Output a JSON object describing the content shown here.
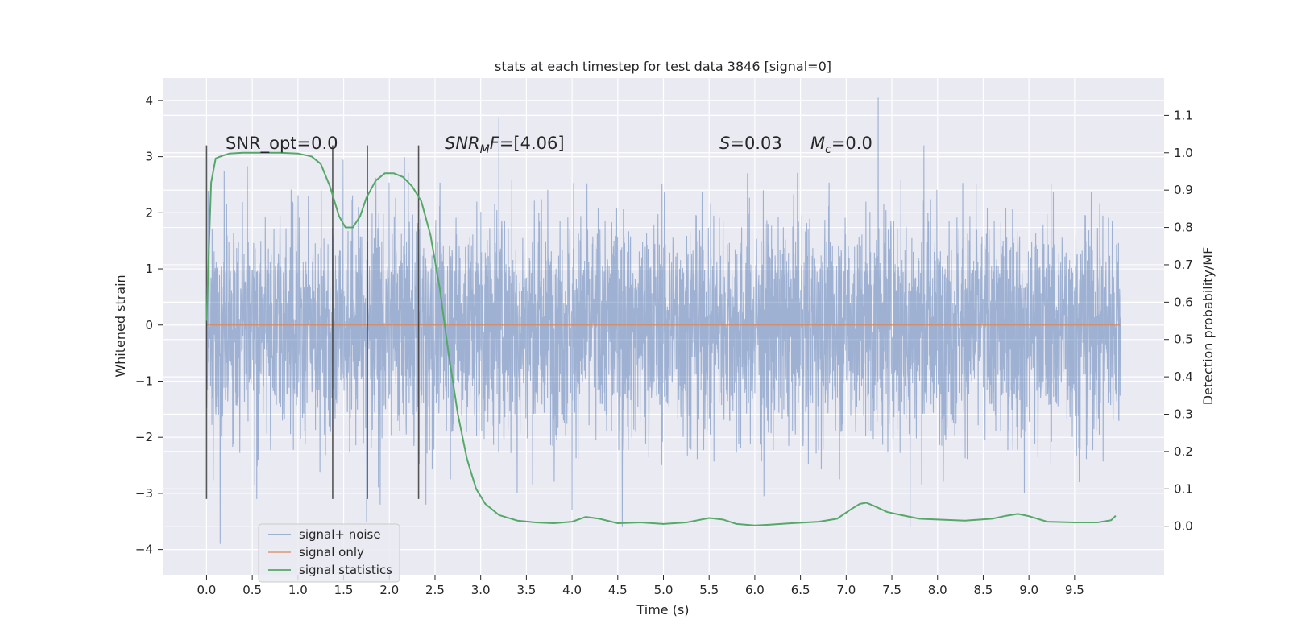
{
  "chart_data": {
    "type": "line",
    "title": "stats at each timestep for test data 3846 [signal=0]",
    "xlabel": "Time (s)",
    "ylabel": "Whitened strain",
    "ylabel_right": "Detection probability/MF",
    "xlim": [
      -0.48,
      10.48
    ],
    "ylim": [
      -4.45,
      4.4
    ],
    "ylim_right": [
      -0.13,
      1.2
    ],
    "x_ticks": [
      "0.0",
      "0.5",
      "1.0",
      "1.5",
      "2.0",
      "2.5",
      "3.0",
      "3.5",
      "4.0",
      "4.5",
      "5.0",
      "5.5",
      "6.0",
      "6.5",
      "7.0",
      "7.5",
      "8.0",
      "8.5",
      "9.0",
      "9.5"
    ],
    "y_ticks": [
      "−4",
      "−3",
      "−2",
      "−1",
      "0",
      "1",
      "2",
      "3",
      "4"
    ],
    "y_right_ticks": [
      "0.0",
      "0.1",
      "0.2",
      "0.3",
      "0.4",
      "0.5",
      "0.6",
      "0.7",
      "0.8",
      "0.9",
      "1.0",
      "1.1"
    ],
    "grid": true,
    "legend_position": "lower-left",
    "annotations": [
      {
        "label": "SNR_opt=0.0",
        "x": 0.2
      },
      {
        "label": "SNR_M F=[4.06]",
        "x": 2.6
      },
      {
        "label": "S=0.03",
        "x": 5.6
      },
      {
        "label": "M_c=0.0",
        "x": 6.6
      }
    ],
    "vertical_markers": [
      0.0,
      1.38,
      1.76,
      2.32
    ],
    "vertical_marker_range": [
      -3.1,
      3.2
    ],
    "series": [
      {
        "name": "signal+ noise",
        "color": "#4c72b0",
        "axis": "left",
        "kind": "noise",
        "x_range": [
          0.0,
          10.0
        ],
        "typical_envelope": [
          -1.9,
          1.9
        ],
        "notable_peaks": [
          {
            "x": 0.15,
            "y": -3.9
          },
          {
            "x": 0.55,
            "y": -3.1
          },
          {
            "x": 1.75,
            "y": -3.5
          },
          {
            "x": 1.9,
            "y": -3.2
          },
          {
            "x": 2.4,
            "y": -3.2
          },
          {
            "x": 3.2,
            "y": 3.7
          },
          {
            "x": 3.4,
            "y": -3.0
          },
          {
            "x": 4.0,
            "y": -3.3
          },
          {
            "x": 4.55,
            "y": -3.6
          },
          {
            "x": 6.1,
            "y": -3.05
          },
          {
            "x": 7.35,
            "y": 4.05
          },
          {
            "x": 7.7,
            "y": -3.6
          },
          {
            "x": 7.85,
            "y": 3.2
          },
          {
            "x": 8.95,
            "y": -3.0
          },
          {
            "x": 9.55,
            "y": -2.8
          }
        ]
      },
      {
        "name": "signal only",
        "color": "#dd8452",
        "axis": "left",
        "x": [
          0.0,
          10.0
        ],
        "values": [
          0.0,
          0.0
        ]
      },
      {
        "name": "signal statistics",
        "color": "#55a868",
        "axis": "right",
        "x": [
          0.0,
          0.05,
          0.1,
          0.15,
          0.25,
          0.4,
          0.6,
          0.8,
          1.0,
          1.15,
          1.25,
          1.35,
          1.45,
          1.52,
          1.6,
          1.68,
          1.75,
          1.85,
          1.95,
          2.05,
          2.15,
          2.25,
          2.35,
          2.45,
          2.55,
          2.65,
          2.75,
          2.85,
          2.95,
          3.05,
          3.2,
          3.4,
          3.6,
          3.8,
          4.0,
          4.15,
          4.3,
          4.5,
          4.75,
          5.0,
          5.25,
          5.5,
          5.65,
          5.8,
          6.0,
          6.15,
          6.4,
          6.7,
          6.9,
          7.05,
          7.15,
          7.22,
          7.3,
          7.45,
          7.6,
          7.8,
          8.0,
          8.3,
          8.6,
          8.75,
          8.88,
          9.0,
          9.2,
          9.5,
          9.75,
          9.9,
          9.95
        ],
        "values": [
          0.55,
          0.92,
          0.985,
          0.99,
          0.998,
          1.0,
          1.0,
          1.0,
          0.998,
          0.99,
          0.97,
          0.91,
          0.83,
          0.8,
          0.8,
          0.83,
          0.88,
          0.925,
          0.945,
          0.945,
          0.935,
          0.91,
          0.87,
          0.78,
          0.64,
          0.46,
          0.3,
          0.18,
          0.1,
          0.06,
          0.03,
          0.015,
          0.01,
          0.008,
          0.012,
          0.025,
          0.02,
          0.008,
          0.01,
          0.006,
          0.01,
          0.022,
          0.018,
          0.006,
          0.002,
          0.004,
          0.008,
          0.012,
          0.02,
          0.045,
          0.06,
          0.063,
          0.055,
          0.038,
          0.03,
          0.02,
          0.018,
          0.015,
          0.02,
          0.028,
          0.033,
          0.027,
          0.012,
          0.01,
          0.01,
          0.016,
          0.028
        ]
      }
    ]
  }
}
